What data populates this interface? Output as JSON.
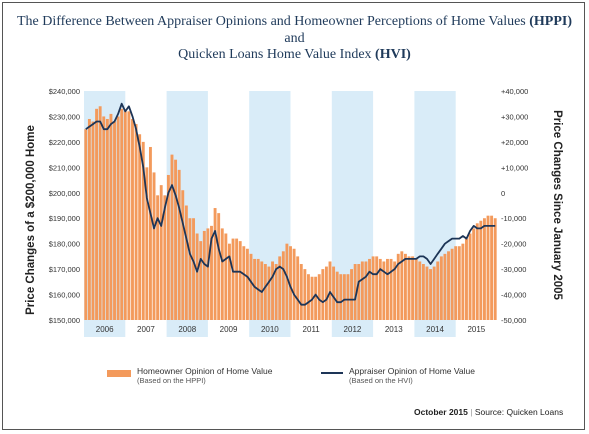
{
  "title": {
    "line1": "The Difference Between Appraiser Opinions and Homeowner Perceptions of Home Values",
    "line1_bold": "(HPPI)",
    "line2": "and",
    "line3": "Quicken Loans Home Value Index",
    "line3_bold": "(HVI)"
  },
  "colors": {
    "bars": "#f39a5c",
    "line": "#1d3557",
    "band": "#d9ecf8",
    "title": "#1f3a5a"
  },
  "chart_data": {
    "type": "bar",
    "ylabel_left": "Price Changes of a $200,000 Home",
    "ylabel_right": "Price Changes Since January 2005",
    "left_axis": {
      "ylim": [
        150000,
        240000
      ],
      "ticks": [
        "$240,000",
        "$230,000",
        "$220,000",
        "$210,000",
        "$200,000",
        "$190,000",
        "$180,000",
        "$170,000",
        "$160,000",
        "$150,000"
      ]
    },
    "right_axis": {
      "ylim": [
        -50000,
        40000
      ],
      "ticks": [
        "+40,000",
        "+30,000",
        "+20,000",
        "+10,000",
        "0",
        "-10,000",
        "-20,000",
        "-30,000",
        "-40,000",
        "-50,000"
      ]
    },
    "years": [
      "2006",
      "2007",
      "2008",
      "2009",
      "2010",
      "2011",
      "2012",
      "2013",
      "2014",
      "2015"
    ],
    "shaded_years": [
      "2006",
      "2008",
      "2010",
      "2012",
      "2014"
    ],
    "series": [
      {
        "name": "Homeowner Opinion of Home Value",
        "note": "(Based on the HPPI)",
        "kind": "bar",
        "values": [
          225000,
          229000,
          228000,
          233000,
          234000,
          230000,
          229000,
          231000,
          228000,
          230000,
          233000,
          232000,
          232000,
          229000,
          227000,
          223000,
          220000,
          210000,
          218000,
          208000,
          199000,
          203000,
          199000,
          207000,
          215000,
          213000,
          209000,
          201000,
          195000,
          190000,
          190000,
          184000,
          181000,
          185000,
          186000,
          187000,
          194000,
          192000,
          186000,
          184000,
          180000,
          182000,
          182000,
          181000,
          179000,
          178000,
          176000,
          174000,
          174000,
          173000,
          172000,
          171000,
          173000,
          172000,
          175000,
          177000,
          180000,
          179000,
          178000,
          175000,
          172000,
          170000,
          168000,
          167000,
          167000,
          168000,
          170000,
          171000,
          173000,
          171000,
          169000,
          168000,
          168000,
          168000,
          170000,
          172000,
          172000,
          173000,
          173000,
          174000,
          175000,
          175000,
          174000,
          173000,
          174000,
          174000,
          173000,
          176000,
          177000,
          176000,
          175000,
          175000,
          174000,
          173000,
          172000,
          171000,
          170000,
          171000,
          173000,
          175000,
          176000,
          177000,
          178000,
          179000,
          179000,
          180000,
          182000,
          184000,
          186000,
          188000,
          189000,
          190000,
          191000,
          191000,
          190000
        ]
      },
      {
        "name": "Appraiser Opinion of Home Value",
        "note": "(Based on the HVI)",
        "kind": "line",
        "values": [
          25000,
          26000,
          27000,
          28000,
          28000,
          25000,
          25000,
          27000,
          28000,
          31000,
          35000,
          32000,
          34000,
          30000,
          25000,
          18000,
          10000,
          -2000,
          -8000,
          -14000,
          -10000,
          -13000,
          -6000,
          0,
          3000,
          -1000,
          -6000,
          -12000,
          -18000,
          -24000,
          -27000,
          -31000,
          -26000,
          -28000,
          -29000,
          -18000,
          -15000,
          -22000,
          -27000,
          -26000,
          -25000,
          -31000,
          -31000,
          -31000,
          -32000,
          -33000,
          -35000,
          -37000,
          -38000,
          -39000,
          -37000,
          -35000,
          -33000,
          -30000,
          -29000,
          -30000,
          -33000,
          -37000,
          -40000,
          -42000,
          -44000,
          -44000,
          -43000,
          -42000,
          -40000,
          -42000,
          -43000,
          -42000,
          -39000,
          -41000,
          -43000,
          -43000,
          -42000,
          -42000,
          -42000,
          -42000,
          -35000,
          -34000,
          -33000,
          -31000,
          -32000,
          -32000,
          -30000,
          -31000,
          -32000,
          -31000,
          -30000,
          -28000,
          -27000,
          -26000,
          -26000,
          -26000,
          -26000,
          -25000,
          -25000,
          -26000,
          -28000,
          -26000,
          -24000,
          -22000,
          -20000,
          -19000,
          -18000,
          -18000,
          -18000,
          -17000,
          -18000,
          -15000,
          -13000,
          -14000,
          -14000,
          -13000,
          -13000,
          -13000,
          -13000
        ]
      }
    ],
    "legend": "bottom-center",
    "grid": false
  },
  "footer": {
    "date": "October 2015",
    "sep": "|",
    "source": "Source: Quicken Loans"
  }
}
